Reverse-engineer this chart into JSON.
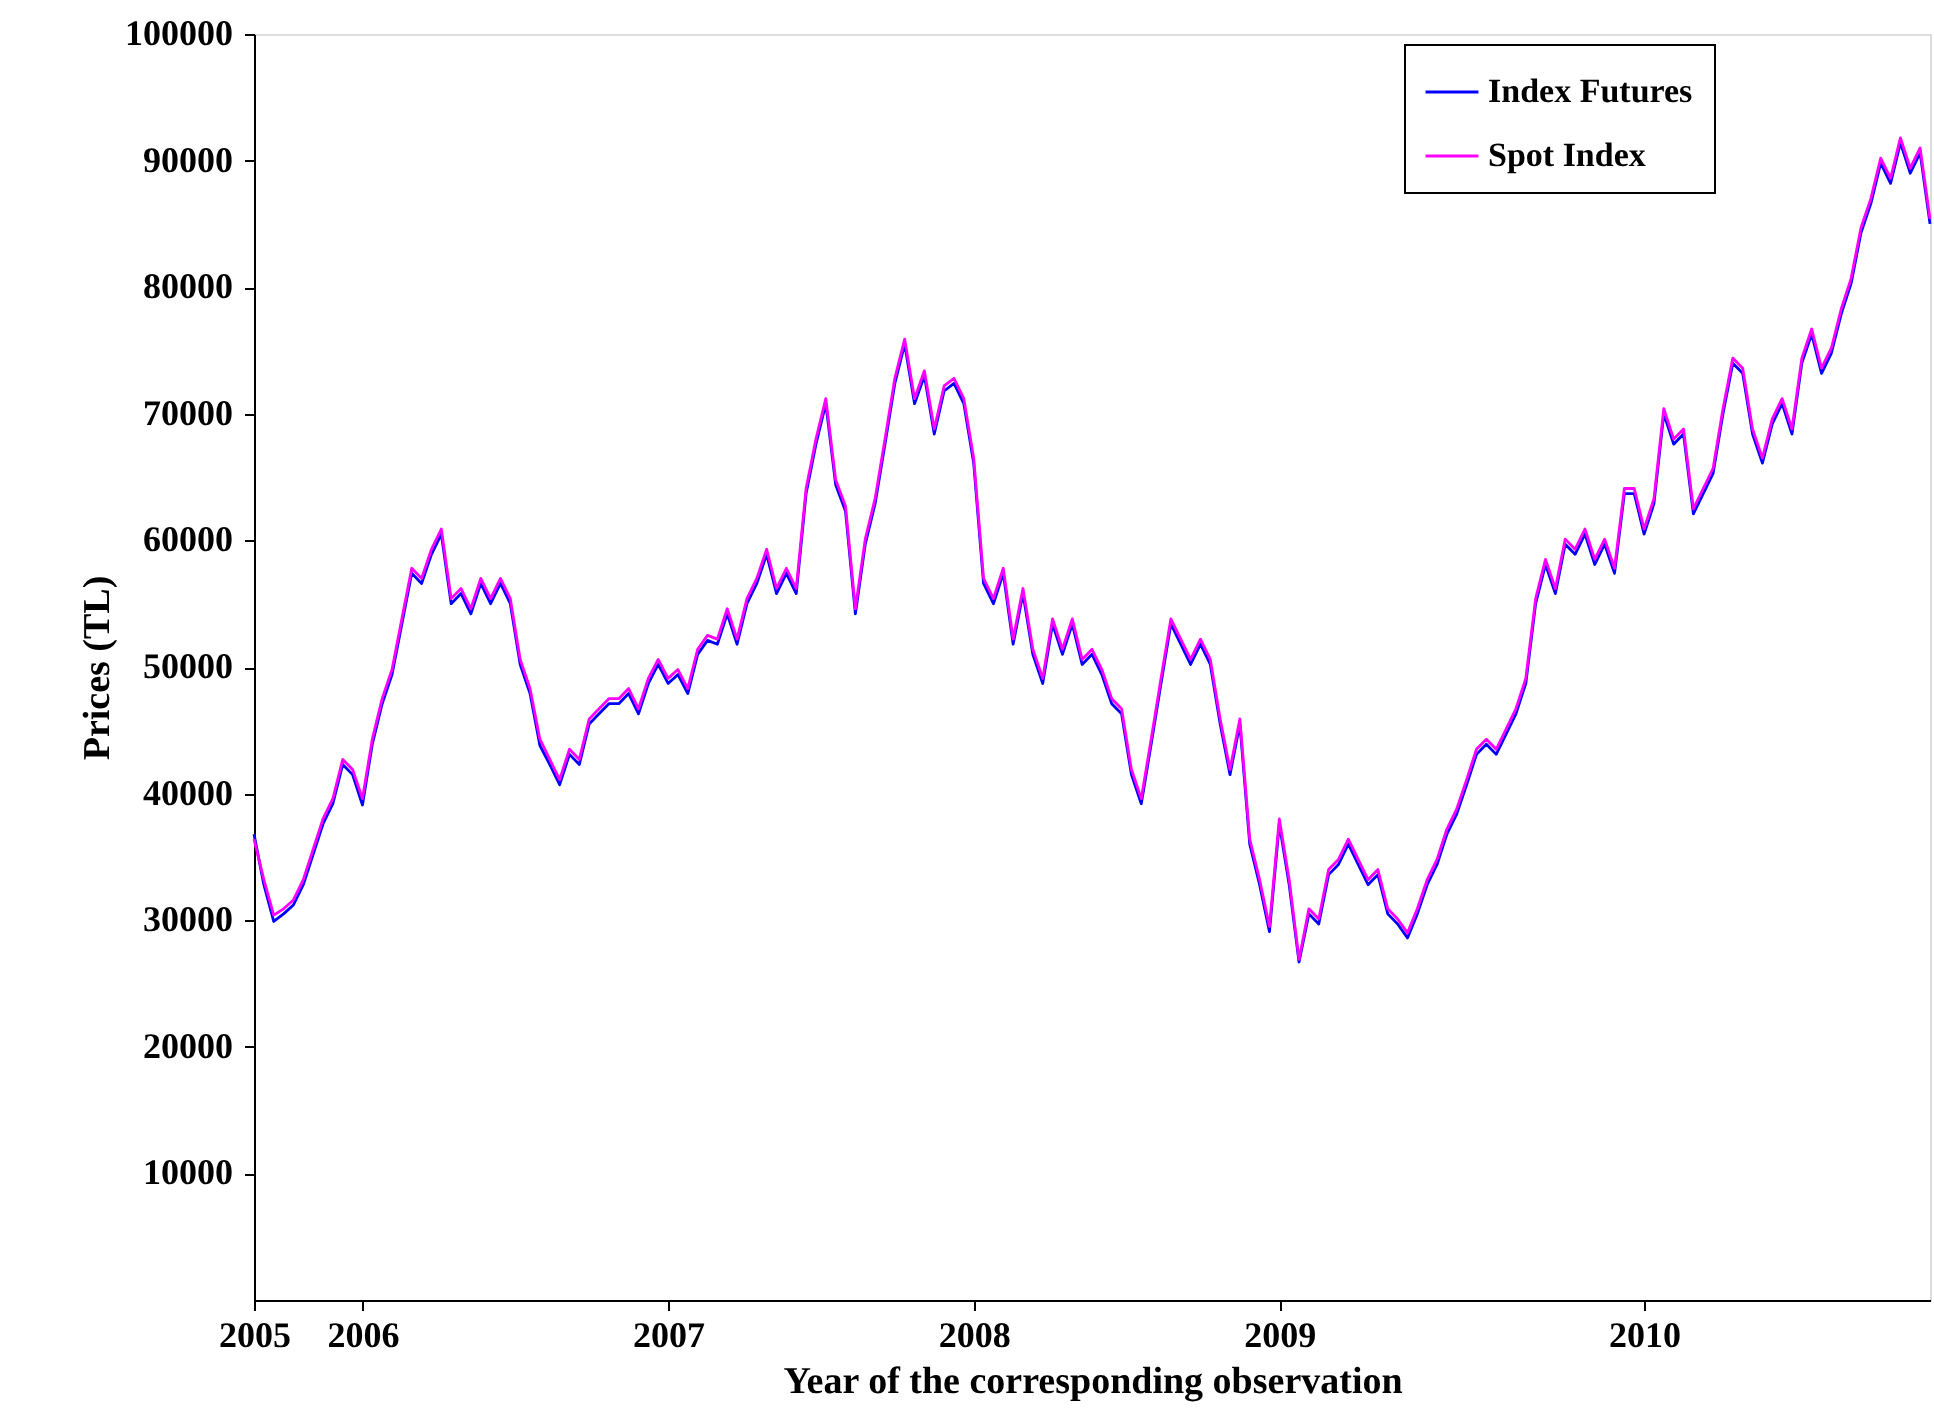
{
  "chart_data": {
    "type": "line",
    "xlabel": "Year of the corresponding observation",
    "ylabel": "Prices (TL)",
    "categories": [
      "2005",
      null,
      null,
      null,
      null,
      null,
      null,
      null,
      null,
      null,
      null,
      "2006",
      null,
      null,
      null,
      null,
      null,
      null,
      null,
      null,
      null,
      null,
      null,
      null,
      null,
      null,
      null,
      null,
      null,
      null,
      null,
      null,
      null,
      null,
      null,
      null,
      null,
      null,
      null,
      null,
      null,
      null,
      "2007",
      null,
      null,
      null,
      null,
      null,
      null,
      null,
      null,
      null,
      null,
      null,
      null,
      null,
      null,
      null,
      null,
      null,
      null,
      null,
      null,
      null,
      null,
      null,
      null,
      null,
      null,
      null,
      null,
      null,
      null,
      "2008",
      null,
      null,
      null,
      null,
      null,
      null,
      null,
      null,
      null,
      null,
      null,
      null,
      null,
      null,
      null,
      null,
      null,
      null,
      null,
      null,
      null,
      null,
      null,
      null,
      null,
      null,
      null,
      null,
      null,
      null,
      "2009",
      null,
      null,
      null,
      null,
      null,
      null,
      null,
      null,
      null,
      null,
      null,
      null,
      null,
      null,
      null,
      null,
      null,
      null,
      null,
      null,
      null,
      null,
      null,
      null,
      null,
      null,
      null,
      null,
      null,
      null,
      null,
      null,
      null,
      null,
      null,
      null,
      "2010",
      null,
      null,
      null,
      null,
      null,
      null,
      null,
      null,
      null,
      null,
      null,
      null,
      null,
      null,
      null,
      null,
      null,
      null,
      null,
      null,
      null,
      null,
      null,
      null,
      null,
      null,
      null,
      null,
      null
    ],
    "ylim": [
      0,
      100000
    ],
    "yticks": [
      10000,
      20000,
      30000,
      40000,
      50000,
      60000,
      70000,
      80000,
      90000,
      100000
    ],
    "grid": false,
    "legend": "top right",
    "line_style": "solid",
    "marker": "none",
    "series": [
      {
        "name": "Index Futures",
        "color": "#0000ff",
        "values": [
          36800,
          32800,
          29900,
          30500,
          31200,
          32800,
          35200,
          37600,
          39200,
          42300,
          41500,
          39100,
          43900,
          47100,
          49400,
          53400,
          57400,
          56600,
          58900,
          60500,
          55000,
          55800,
          54200,
          56600,
          55000,
          56600,
          55000,
          50200,
          47900,
          43800,
          42300,
          40700,
          43100,
          42300,
          45500,
          46300,
          47100,
          47100,
          47900,
          46300,
          48700,
          50200,
          48700,
          49400,
          47900,
          51000,
          52100,
          51800,
          54200,
          51800,
          55000,
          56600,
          58900,
          55800,
          57400,
          55800,
          63700,
          67600,
          70800,
          64400,
          62300,
          54200,
          59700,
          62900,
          67600,
          72400,
          75500,
          70800,
          73000,
          68400,
          71800,
          72400,
          70800,
          66100,
          56600,
          55000,
          57400,
          51800,
          55800,
          51000,
          48700,
          53400,
          51000,
          53400,
          50200,
          51000,
          49400,
          47100,
          46300,
          41500,
          39200,
          43900,
          48700,
          53400,
          51800,
          50200,
          51800,
          50200,
          45500,
          41500,
          45500,
          36000,
          32800,
          29100,
          37600,
          32800,
          26700,
          30500,
          29700,
          33600,
          34400,
          36000,
          34400,
          32800,
          33600,
          30500,
          29700,
          28600,
          30500,
          32800,
          34400,
          36800,
          38400,
          40700,
          43100,
          43900,
          43100,
          44700,
          46300,
          48700,
          55000,
          58100,
          55800,
          59700,
          58900,
          60500,
          58100,
          59700,
          57400,
          63700,
          63700,
          60500,
          62900,
          70000,
          67600,
          68400,
          62100,
          63700,
          65300,
          70000,
          74000,
          73200,
          68400,
          66100,
          69200,
          70800,
          68400,
          74000,
          76300,
          73200,
          74800,
          77900,
          80300,
          84300,
          86600,
          89800,
          88200,
          91400,
          89000,
          90600,
          85000
        ]
      },
      {
        "name": "Spot Index",
        "color": "#ff00ff",
        "values": [
          36400,
          33200,
          30400,
          30900,
          31600,
          33200,
          35600,
          38000,
          39600,
          42700,
          41900,
          39600,
          44300,
          47500,
          49800,
          53800,
          57800,
          57000,
          59300,
          60900,
          55400,
          56200,
          54600,
          57000,
          55400,
          57000,
          55400,
          50600,
          48300,
          44300,
          42700,
          41100,
          43500,
          42700,
          45900,
          46700,
          47500,
          47500,
          48300,
          46700,
          49100,
          50600,
          49100,
          49800,
          48300,
          51400,
          52500,
          52200,
          54600,
          52200,
          55400,
          57000,
          59300,
          56200,
          57800,
          56200,
          64100,
          68000,
          71200,
          64800,
          62700,
          54600,
          60100,
          63300,
          68000,
          72800,
          75900,
          71200,
          73400,
          68800,
          72200,
          72800,
          71200,
          66500,
          57000,
          55400,
          57800,
          52200,
          56200,
          51400,
          49100,
          53800,
          51400,
          53800,
          50600,
          51400,
          49800,
          47500,
          46700,
          41900,
          39600,
          44300,
          49100,
          53800,
          52200,
          50600,
          52200,
          50600,
          45900,
          41900,
          45900,
          36400,
          33200,
          29500,
          38000,
          33200,
          26900,
          30900,
          30100,
          34000,
          34800,
          36400,
          34800,
          33200,
          34000,
          30900,
          30100,
          29000,
          30900,
          33200,
          34800,
          37200,
          38800,
          41100,
          43500,
          44300,
          43500,
          45100,
          46700,
          49100,
          55400,
          58500,
          56200,
          60100,
          59300,
          60900,
          58500,
          60100,
          57800,
          64100,
          64100,
          60900,
          63300,
          70400,
          68000,
          68800,
          62500,
          64100,
          65700,
          70400,
          74400,
          73600,
          68800,
          66500,
          69600,
          71200,
          68800,
          74400,
          76700,
          73600,
          75200,
          78300,
          80700,
          84700,
          87000,
          90200,
          88600,
          91800,
          89400,
          91000,
          85400
        ]
      }
    ]
  }
}
